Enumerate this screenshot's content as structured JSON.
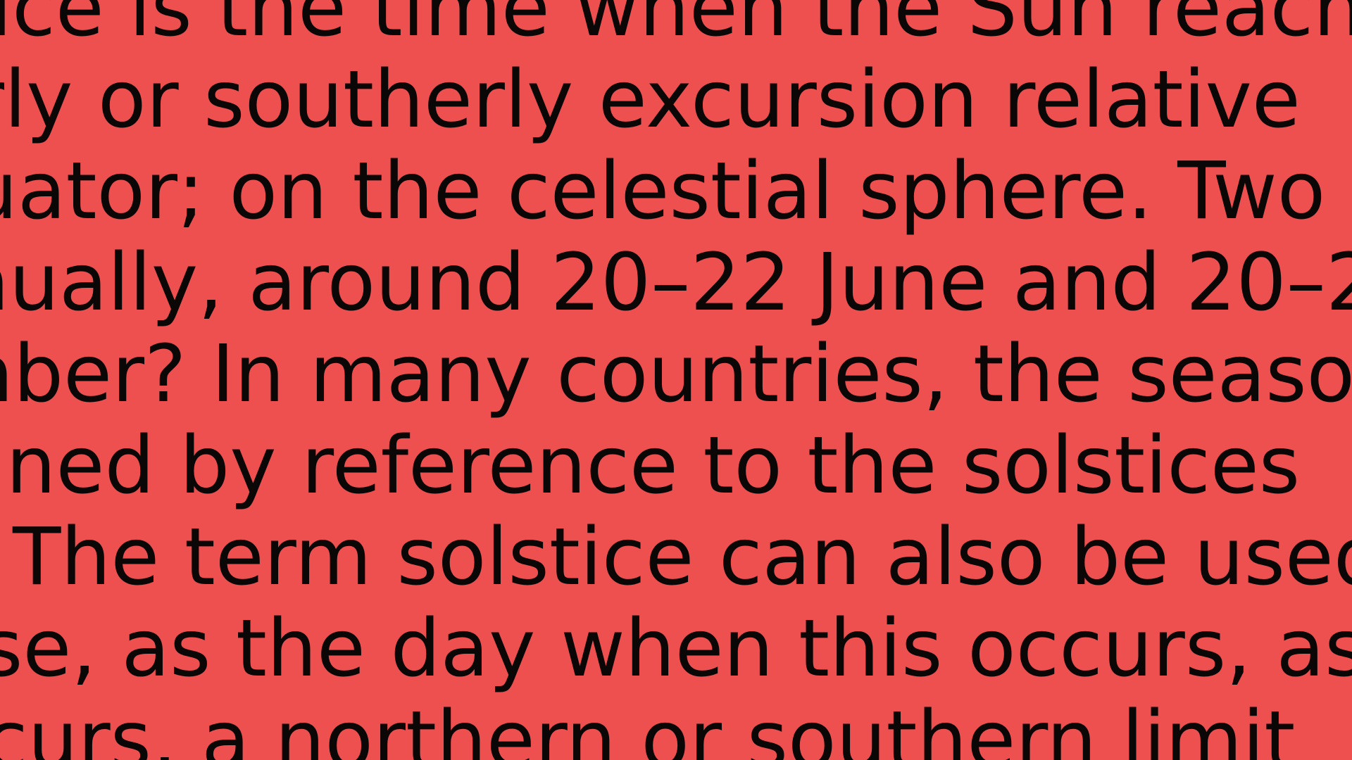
{
  "background_color": "#ee5050",
  "text_color": "#0b0707",
  "lines": [
    "ice is the time when the Sun reach",
    "rly or southerly excursion relative",
    "uator; on the celestial sphere. Two",
    "nually, around 20–22 June and 20–2",
    "nber? In many countries, the seaso",
    "fined by reference to the solstices",
    "The term solstice can also be used",
    "se, as the day when this occurs, as t",
    "curs, a northern or southern limit"
  ]
}
